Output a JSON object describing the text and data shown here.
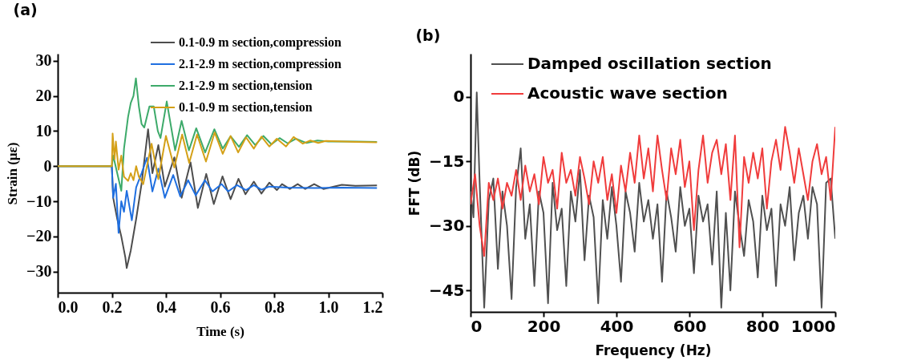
{
  "chart_data": [
    {
      "type": "line",
      "title": "(a)",
      "xlabel": "Time (s)",
      "ylabel": "Strain (με)",
      "xlim": [
        0,
        1.2
      ],
      "ylim": [
        -36,
        32
      ],
      "xticks": [
        {
          "value": 0,
          "label": "0.0"
        },
        0.2,
        0.4,
        0.6,
        0.8,
        {
          "value": 1,
          "label": "1.0"
        },
        1.2
      ],
      "yticks": [
        -30,
        -20,
        -10,
        0,
        10,
        20,
        30
      ],
      "legend": "top right",
      "grid": false,
      "series": [
        {
          "name": "0.1-0.9 m section,compression",
          "color": "#4d4d4d",
          "x": [
            0,
            0.2,
            0.205,
            0.22,
            0.235,
            0.25,
            0.255,
            0.27,
            0.29,
            0.31,
            0.334,
            0.35,
            0.372,
            0.396,
            0.431,
            0.458,
            0.491,
            0.518,
            0.549,
            0.577,
            0.609,
            0.639,
            0.668,
            0.694,
            0.725,
            0.753,
            0.782,
            0.81,
            0.829,
            0.858,
            0.887,
            0.915,
            0.948,
            0.982,
            1.05,
            1.1,
            1.18
          ],
          "values": [
            0,
            0,
            -9,
            -15,
            -20,
            -26,
            -29,
            -24,
            -15,
            -5,
            10.5,
            -2,
            6,
            -5.8,
            2.5,
            -9,
            1.1,
            -11.9,
            -2.2,
            -10.8,
            -2.9,
            -9.4,
            -3.6,
            -8,
            -4.4,
            -7.8,
            -4.7,
            -6.8,
            -5.1,
            -6.5,
            -5.1,
            -6.5,
            -5.1,
            -6.5,
            -5.3,
            -5.6,
            -5.5
          ]
        },
        {
          "name": "2.1-2.9 m section,compression",
          "color": "#1f6fe0",
          "x": [
            0,
            0.2,
            0.205,
            0.215,
            0.225,
            0.235,
            0.245,
            0.255,
            0.274,
            0.29,
            0.31,
            0.33,
            0.35,
            0.372,
            0.396,
            0.427,
            0.453,
            0.482,
            0.51,
            0.544,
            0.572,
            0.606,
            0.63,
            0.663,
            0.696,
            0.725,
            0.753,
            0.782,
            0.85,
            0.95,
            1.05,
            1.18
          ],
          "values": [
            0,
            0,
            -9,
            -5,
            -19,
            -10,
            -13,
            -7,
            -15.4,
            -6,
            -2,
            2.4,
            -7.2,
            -0.7,
            -9,
            -2.5,
            -8.6,
            -4,
            -8.3,
            -4,
            -7.2,
            -5.1,
            -7.2,
            -5.4,
            -6.8,
            -5.4,
            -6.7,
            -5.8,
            -6.1,
            -6.2,
            -6.1,
            -6.2
          ]
        },
        {
          "name": "2.1-2.9 m section,tension",
          "color": "#3daa6a",
          "x": [
            0,
            0.2,
            0.205,
            0.22,
            0.235,
            0.245,
            0.26,
            0.27,
            0.28,
            0.289,
            0.3,
            0.31,
            0.32,
            0.339,
            0.355,
            0.37,
            0.38,
            0.403,
            0.434,
            0.458,
            0.485,
            0.512,
            0.545,
            0.579,
            0.61,
            0.639,
            0.67,
            0.7,
            0.73,
            0.76,
            0.79,
            0.82,
            0.85,
            0.88,
            0.92,
            0.96,
            1.0,
            1.1,
            1.18
          ],
          "values": [
            0,
            0,
            3,
            -2,
            -7,
            5,
            14,
            18,
            20,
            25,
            17,
            12,
            11,
            17,
            17,
            10,
            8,
            18.4,
            4.5,
            12.9,
            4.5,
            10.8,
            3.9,
            10.5,
            5,
            8.5,
            5.5,
            8.8,
            6,
            8.6,
            6.2,
            8,
            6.5,
            7.8,
            6.6,
            7.3,
            7,
            7,
            6.9
          ]
        },
        {
          "name": "0.1-0.9 m section,tension",
          "color": "#d4a017",
          "x": [
            0,
            0.2,
            0.203,
            0.21,
            0.215,
            0.225,
            0.235,
            0.245,
            0.26,
            0.27,
            0.28,
            0.29,
            0.3,
            0.316,
            0.347,
            0.372,
            0.4,
            0.431,
            0.46,
            0.486,
            0.515,
            0.548,
            0.58,
            0.61,
            0.639,
            0.667,
            0.696,
            0.725,
            0.753,
            0.782,
            0.81,
            0.844,
            0.872,
            0.906,
            0.934,
            0.963,
            0.991,
            1.1,
            1.18
          ],
          "values": [
            0,
            0,
            9.3,
            2,
            7,
            -1,
            3,
            -3,
            -4.2,
            -2,
            -4,
            0,
            -3,
            -5.1,
            6.4,
            -3.7,
            8.6,
            -0.4,
            9,
            0.9,
            9,
            1.3,
            9.6,
            3.5,
            8.6,
            3.9,
            8.2,
            5,
            8.4,
            5.6,
            7.8,
            5.6,
            8.3,
            6.4,
            7.3,
            6.6,
            7.2,
            6.9,
            6.8
          ]
        }
      ]
    },
    {
      "type": "line",
      "title": "(b)",
      "xlabel": "Frequency (Hz)",
      "ylabel": "FFT (dB)",
      "xlim": [
        0,
        1000
      ],
      "ylim": [
        -50,
        10
      ],
      "xticks": [
        0,
        200,
        400,
        600,
        800,
        1000
      ],
      "yticks": [
        -45,
        -30,
        -15,
        0
      ],
      "legend": "top left",
      "grid": false,
      "series": [
        {
          "name": "Damped oscillation section",
          "color": "#505050",
          "x": [
            0,
            8,
            17,
            25,
            37.5,
            50,
            62.5,
            75,
            87.5,
            100,
            112.5,
            125,
            137.5,
            150,
            162.5,
            175,
            187.5,
            200,
            212.5,
            225,
            237.5,
            250,
            262.5,
            275,
            287.5,
            300,
            312.5,
            325,
            337.5,
            350,
            362.5,
            375,
            387.5,
            400,
            412.5,
            425,
            437.5,
            450,
            462.5,
            475,
            487.5,
            500,
            512.5,
            525,
            537.5,
            550,
            562.5,
            575,
            587.5,
            600,
            612.5,
            625,
            637.5,
            650,
            662.5,
            675,
            687.5,
            700,
            712.5,
            725,
            737.5,
            750,
            762.5,
            775,
            787.5,
            800,
            812.5,
            825,
            837.5,
            850,
            862.5,
            875,
            887.5,
            900,
            912.5,
            925,
            937.5,
            950,
            962.5,
            975,
            987.5,
            1000
          ],
          "values": [
            -22,
            -28,
            1,
            -20,
            -49,
            -24,
            -19,
            -40,
            -22,
            -30,
            -47,
            -21,
            -12,
            -33,
            -25,
            -44,
            -22,
            -27,
            -48,
            -20,
            -31,
            -26,
            -44,
            -22,
            -29,
            -17,
            -38,
            -23,
            -28,
            -48,
            -24,
            -33,
            -21,
            -30,
            -43,
            -22,
            -27,
            -36,
            -20,
            -29,
            -24,
            -33,
            -25,
            -43,
            -22,
            -28,
            -36,
            -21,
            -30,
            -26,
            -41,
            -23,
            -29,
            -25,
            -39,
            -22,
            -49,
            -27,
            -45,
            -22,
            -30,
            -37,
            -24,
            -29,
            -42,
            -23,
            -31,
            -26,
            -44,
            -25,
            -30,
            -21,
            -38,
            -27,
            -23,
            -33,
            -21,
            -25,
            -49,
            -20,
            -19,
            -33
          ]
        },
        {
          "name": "Acoustic wave section",
          "color": "#f03c3c",
          "x": [
            0,
            12.5,
            25,
            37.5,
            50,
            62.5,
            75,
            87.5,
            100,
            112.5,
            125,
            137.5,
            150,
            162.5,
            175,
            187.5,
            200,
            212.5,
            225,
            237.5,
            250,
            262.5,
            275,
            287.5,
            300,
            312.5,
            325,
            337.5,
            350,
            362.5,
            375,
            387.5,
            400,
            412.5,
            425,
            437.5,
            450,
            462.5,
            475,
            487.5,
            500,
            512.5,
            525,
            537.5,
            550,
            562.5,
            575,
            587.5,
            600,
            612.5,
            625,
            637.5,
            650,
            662.5,
            675,
            687.5,
            700,
            712.5,
            725,
            737.5,
            750,
            762.5,
            775,
            787.5,
            800,
            812.5,
            825,
            837.5,
            850,
            862.5,
            875,
            887.5,
            900,
            912.5,
            925,
            937.5,
            950,
            962.5,
            975,
            987.5,
            1000
          ],
          "values": [
            -25,
            -18,
            -30,
            -37,
            -20,
            -24,
            -19,
            -26,
            -20,
            -23,
            -17,
            -24,
            -16,
            -22,
            -18,
            -25,
            -14,
            -20,
            -17,
            -26,
            -13,
            -20,
            -17,
            -23,
            -14,
            -19,
            -25,
            -15,
            -20,
            -14,
            -24,
            -18,
            -27,
            -16,
            -22,
            -13,
            -20,
            -9,
            -19,
            -12,
            -22,
            -9,
            -17,
            -24,
            -12,
            -18,
            -10,
            -21,
            -15,
            -31,
            -17,
            -9,
            -20,
            -13,
            -10,
            -18,
            -11,
            -24,
            -9,
            -35,
            -14,
            -20,
            -13,
            -19,
            -12,
            -26,
            -15,
            -10,
            -17,
            -7,
            -13,
            -20,
            -12,
            -18,
            -24,
            -15,
            -11,
            -18,
            -14,
            -24,
            -7
          ]
        }
      ]
    }
  ]
}
